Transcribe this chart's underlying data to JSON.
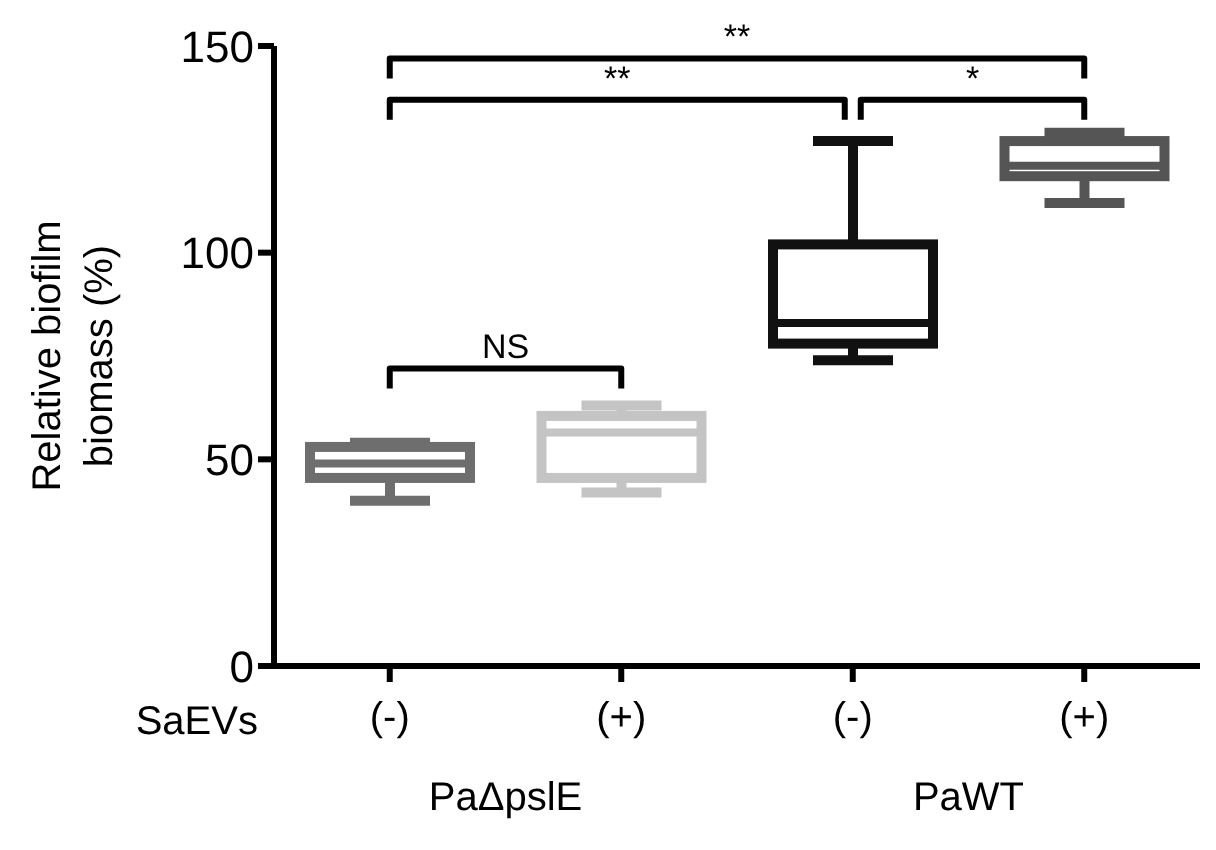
{
  "chart_data": {
    "type": "box",
    "ylabel": "Relative biofilm biomass (%)",
    "categories": [
      "(-)",
      "(+)",
      "(-)",
      "(+)"
    ],
    "boxes": [
      {
        "low": 40,
        "q1": 45.5,
        "median": 49,
        "q3": 53,
        "high": 54
      },
      {
        "low": 42,
        "q1": 45.5,
        "median": 56.5,
        "q3": 60.5,
        "high": 63
      },
      {
        "low": 74,
        "q1": 78,
        "median": 83,
        "q3": 102,
        "high": 127
      },
      {
        "low": 112,
        "q1": 118.5,
        "median": 121,
        "q3": 127,
        "high": 129
      }
    ],
    "colors": [
      "#6e6e6e",
      "#c4c4c4",
      "#111111",
      "#555555"
    ],
    "ylim": [
      0,
      150
    ],
    "yticks": [
      0,
      50,
      100,
      150
    ],
    "annotations": [
      "SaEVs",
      "PaΔpslE",
      "PaWT",
      "NS",
      "**",
      "**",
      "*"
    ]
  }
}
